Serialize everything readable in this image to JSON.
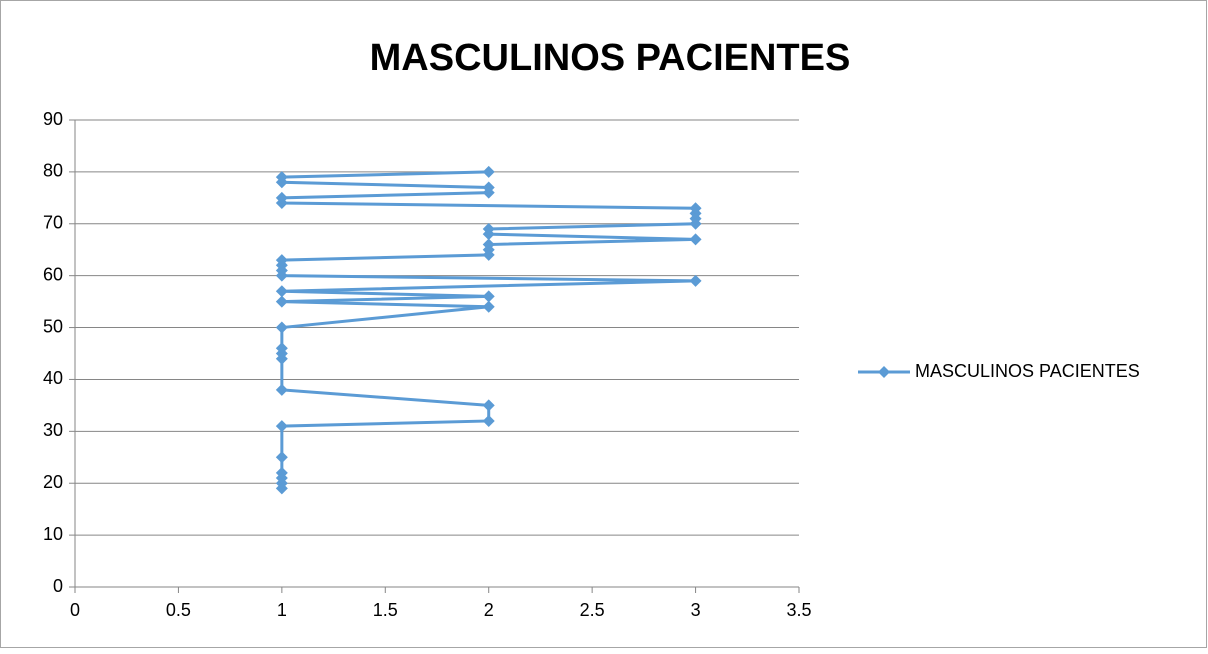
{
  "chart_data": {
    "type": "scatter",
    "title": "MASCULINOS PACIENTES",
    "x": [
      1,
      1,
      1,
      1,
      1,
      1,
      2,
      2,
      1,
      1,
      1,
      1,
      1,
      2,
      1,
      2,
      1,
      3,
      1,
      1,
      1,
      1,
      2,
      2,
      2,
      3,
      2,
      2,
      3,
      3,
      3,
      3,
      1,
      1,
      2,
      2,
      1,
      1,
      2
    ],
    "series": [
      {
        "name": "MASCULINOS PACIENTES",
        "color": "#5b9bd5",
        "values": [
          19,
          20,
          21,
          22,
          25,
          31,
          32,
          35,
          38,
          44,
          45,
          46,
          50,
          54,
          55,
          56,
          57,
          59,
          60,
          61,
          62,
          63,
          64,
          65,
          66,
          67,
          68,
          69,
          70,
          71,
          72,
          73,
          74,
          75,
          76,
          77,
          78,
          79,
          80
        ]
      }
    ],
    "xlim": [
      0,
      3.5
    ],
    "xticks": [
      0,
      0.5,
      1,
      1.5,
      2,
      2.5,
      3,
      3.5
    ],
    "ylim": [
      0,
      90
    ],
    "yticks": [
      0,
      10,
      20,
      30,
      40,
      50,
      60,
      70,
      80,
      90
    ],
    "grid": true,
    "legend": "right",
    "lines": true
  }
}
